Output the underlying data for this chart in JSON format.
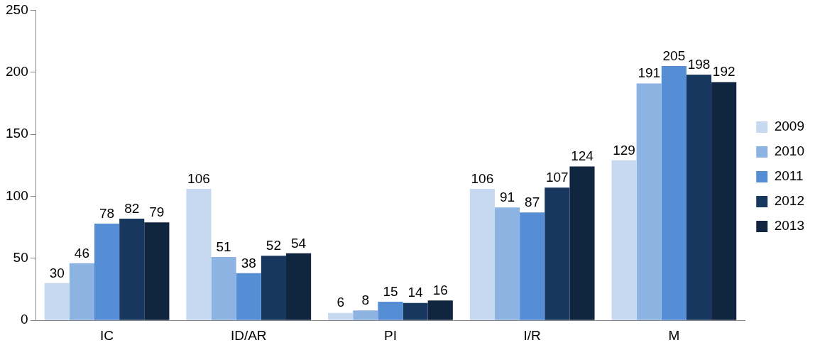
{
  "chart_data": {
    "type": "bar",
    "categories": [
      "IC",
      "ID/AR",
      "PI",
      "I/R",
      "M"
    ],
    "series": [
      {
        "name": "2009",
        "color": "#c6d9f1",
        "values": [
          30,
          106,
          6,
          106,
          129
        ]
      },
      {
        "name": "2010",
        "color": "#8db3e2",
        "values": [
          46,
          51,
          8,
          91,
          191
        ]
      },
      {
        "name": "2011",
        "color": "#558ed5",
        "values": [
          78,
          38,
          15,
          87,
          205
        ]
      },
      {
        "name": "2012",
        "color": "#17375e",
        "values": [
          82,
          52,
          14,
          107,
          198
        ]
      },
      {
        "name": "2013",
        "color": "#10253f",
        "values": [
          79,
          54,
          16,
          124,
          192
        ]
      }
    ],
    "ylim": [
      0,
      250
    ],
    "yticks": [
      0,
      50,
      100,
      150,
      200,
      250
    ],
    "grid": false,
    "legend": "right",
    "data_labels": true
  }
}
